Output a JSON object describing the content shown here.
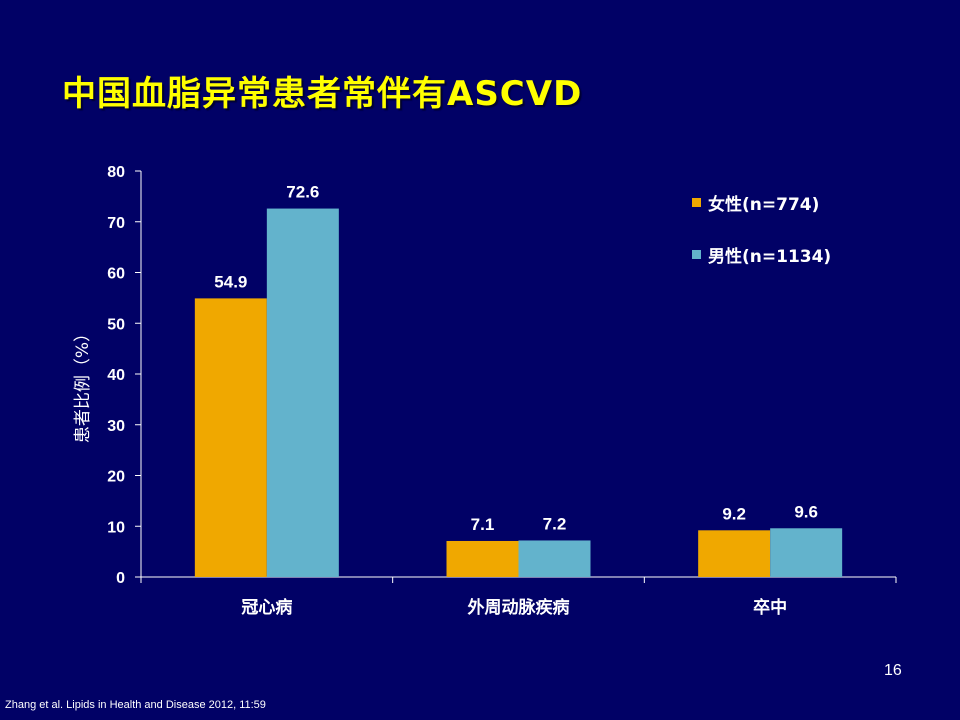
{
  "slide": {
    "title": "中国血脂异常患者常伴有ASCVD",
    "page_number": "16",
    "citation": "Zhang et al. Lipids in Health and Disease 2012, 11:59"
  },
  "colors": {
    "background": "#010166",
    "title": "#ffff00",
    "female": "#f0a800",
    "male": "#63b3cc",
    "text": "#ffffff"
  },
  "chart_data": {
    "type": "bar",
    "title": "",
    "xlabel": "",
    "ylabel": "患者比例（%）",
    "categories": [
      "冠心病",
      "外周动脉疾病",
      "卒中"
    ],
    "series": [
      {
        "name": "女性(n=774)",
        "color": "#f0a800",
        "values": [
          54.9,
          7.1,
          9.2
        ],
        "labels": [
          "54.9",
          "7.1",
          "9.2"
        ]
      },
      {
        "name": "男性(n=1134)",
        "color": "#63b3cc",
        "values": [
          72.6,
          7.2,
          9.6
        ],
        "labels": [
          "72.6",
          "7.2",
          "9.6"
        ]
      }
    ],
    "ylim": [
      0,
      80
    ],
    "yticks": [
      0,
      10,
      20,
      30,
      40,
      50,
      60,
      70,
      80
    ],
    "grid": false,
    "legend_position": "top-right"
  }
}
